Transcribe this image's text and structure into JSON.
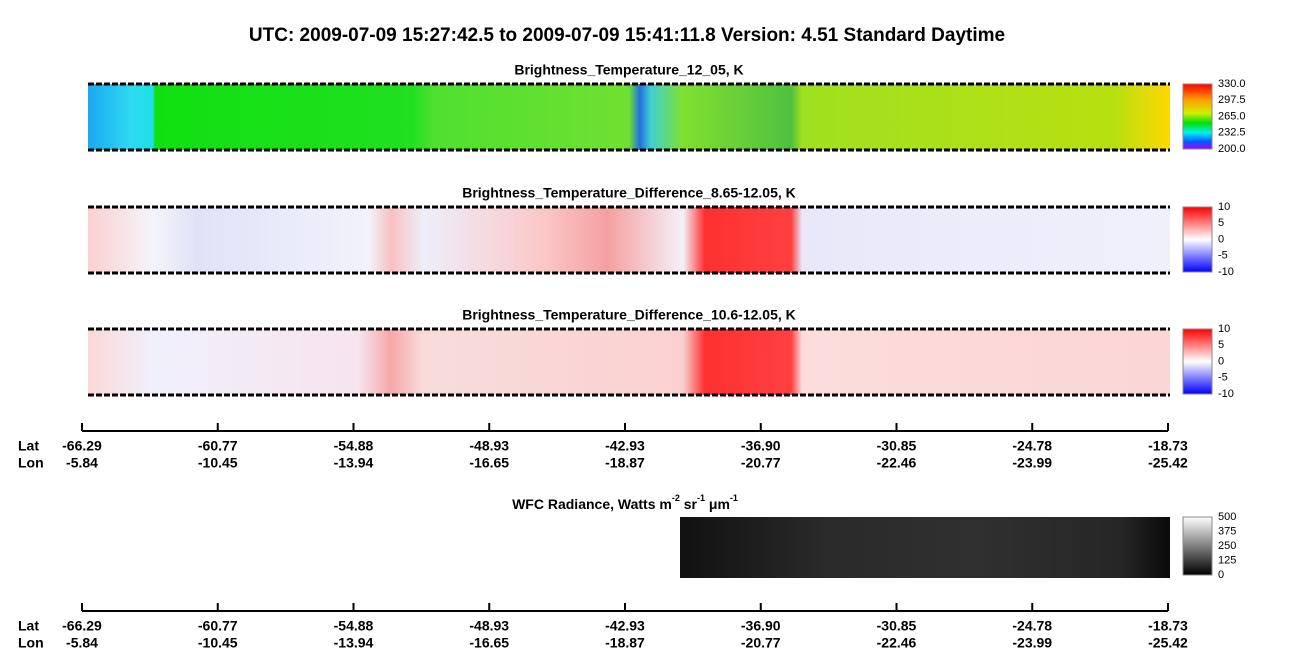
{
  "title": "UTC:  2009-07-09   15:27:42.5  to  2009-07-09   15:41:11.8    Version: 4.51  Standard Daytime",
  "panels": [
    {
      "title": "Brightness_Temperature_12_05, K",
      "colorbar": [
        "330.0",
        "297.5",
        "265.0",
        "232.5",
        "200.0"
      ]
    },
    {
      "title": "Brightness_Temperature_Difference_8.65-12.05, K",
      "colorbar": [
        "10",
        "5",
        "0",
        "-5",
        "-10"
      ]
    },
    {
      "title": "Brightness_Temperature_Difference_10.6-12.05, K",
      "colorbar": [
        "10",
        "5",
        "0",
        "-5",
        "-10"
      ]
    }
  ],
  "wfc": {
    "title": [
      "WFC Radiance, Watts m",
      "-2",
      " sr",
      "-1",
      " μm",
      "-1"
    ],
    "colorbar": [
      "500",
      "375",
      "250",
      "125",
      "0"
    ]
  },
  "axes": [
    {
      "lat_label": "Lat",
      "lon_label": "Lon",
      "lat": [
        "-66.29",
        "-60.77",
        "-54.88",
        "-48.93",
        "-42.93",
        "-36.90",
        "-30.85",
        "-24.78",
        "-18.73"
      ],
      "lon": [
        "-5.84",
        "-10.45",
        "-13.94",
        "-16.65",
        "-18.87",
        "-20.77",
        "-22.46",
        "-23.99",
        "-25.42"
      ]
    },
    {
      "lat_label": "Lat",
      "lon_label": "Lon",
      "lat": [
        "-66.29",
        "-60.77",
        "-54.88",
        "-48.93",
        "-42.93",
        "-36.90",
        "-30.85",
        "-24.78",
        "-18.73"
      ],
      "lon": [
        "-5.84",
        "-10.45",
        "-13.94",
        "-16.65",
        "-18.87",
        "-20.77",
        "-22.46",
        "-23.99",
        "-25.42"
      ]
    }
  ]
}
